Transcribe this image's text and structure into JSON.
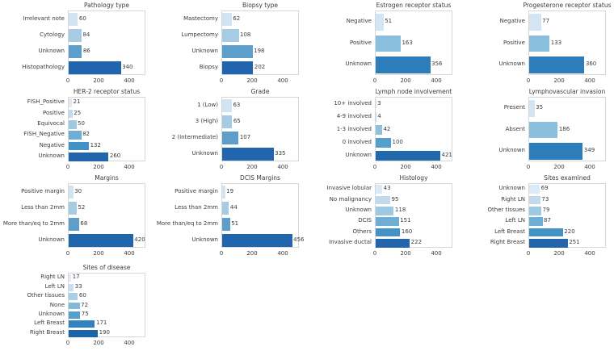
{
  "figure": {
    "background": "#ffffff",
    "axis_ticks": [
      0,
      200,
      400
    ],
    "xlim": [
      0,
      500
    ]
  },
  "chart_data": [
    {
      "type": "bar",
      "orientation": "horizontal",
      "title": "Pathology type",
      "categories": [
        "Irrelevant note",
        "Cytology",
        "Unknown",
        "Histopathology"
      ],
      "values": [
        60,
        84,
        86,
        340
      ],
      "colors": [
        "#d2e3f1",
        "#a6cbe2",
        "#5d9fca",
        "#2166ac"
      ],
      "xticks": [
        0,
        200,
        400
      ],
      "xlim": [
        0,
        500
      ]
    },
    {
      "type": "bar",
      "orientation": "horizontal",
      "title": "Biopsy type",
      "categories": [
        "Mastectomy",
        "Lumpectomy",
        "Unknown",
        "Biopsy"
      ],
      "values": [
        62,
        108,
        198,
        202
      ],
      "colors": [
        "#d2e3f1",
        "#a6cbe2",
        "#5d9fca",
        "#2166ac"
      ],
      "xticks": [
        0,
        200,
        400
      ],
      "xlim": [
        0,
        500
      ]
    },
    {
      "type": "bar",
      "orientation": "horizontal",
      "title": "Estrogen receptor status",
      "categories": [
        "Negative",
        "Positive",
        "Unknown"
      ],
      "values": [
        51,
        163,
        356
      ],
      "colors": [
        "#d3e4f3",
        "#8abfdd",
        "#2d7dbb"
      ],
      "xticks": [
        0,
        200,
        400
      ],
      "xlim": [
        0,
        500
      ]
    },
    {
      "type": "bar",
      "orientation": "horizontal",
      "title": "Progesterone receptor status",
      "categories": [
        "Negative",
        "Positive",
        "Unknown"
      ],
      "values": [
        77,
        133,
        360
      ],
      "colors": [
        "#d3e4f3",
        "#8abfdd",
        "#2d7dbb"
      ],
      "xticks": [
        0,
        200,
        400
      ],
      "xlim": [
        0,
        500
      ]
    },
    {
      "type": "bar",
      "orientation": "horizontal",
      "title": "HER-2 receptor status",
      "categories": [
        "FISH_Positive",
        "Positive",
        "Equivocal",
        "FISH_Negative",
        "Negative",
        "Unknown"
      ],
      "values": [
        21,
        25,
        50,
        82,
        132,
        260
      ],
      "colors": [
        "#dce9f6",
        "#c3daee",
        "#9fc9e1",
        "#6caed6",
        "#4292c6",
        "#2166ac"
      ],
      "xticks": [
        0,
        200,
        400
      ],
      "xlim": [
        0,
        500
      ]
    },
    {
      "type": "bar",
      "orientation": "horizontal",
      "title": "Grade",
      "categories": [
        "1 (Low)",
        "3 (High)",
        "2 (Intermediate)",
        "Unknown"
      ],
      "values": [
        63,
        65,
        107,
        335
      ],
      "colors": [
        "#d2e3f1",
        "#a6cbe2",
        "#5d9fca",
        "#2166ac"
      ],
      "xticks": [
        0,
        200,
        400
      ],
      "xlim": [
        0,
        500
      ]
    },
    {
      "type": "bar",
      "orientation": "horizontal",
      "title": "Lymph node involvement",
      "categories": [
        "10+ involved",
        "4-9 involved",
        "1-3 involved",
        "0 involved",
        "Unknown"
      ],
      "values": [
        3,
        4,
        42,
        100,
        421
      ],
      "colors": [
        "#dbe9f6",
        "#c1d9ed",
        "#8fc1dd",
        "#549fcd",
        "#2268ad"
      ],
      "xticks": [
        0,
        200,
        400
      ],
      "xlim": [
        0,
        500
      ]
    },
    {
      "type": "bar",
      "orientation": "horizontal",
      "title": "Lymphovascular invasion",
      "categories": [
        "Present",
        "Absent",
        "Unknown"
      ],
      "values": [
        35,
        186,
        349
      ],
      "colors": [
        "#d3e4f3",
        "#8abfdd",
        "#2d7dbb"
      ],
      "xticks": [
        0,
        200,
        400
      ],
      "xlim": [
        0,
        500
      ]
    },
    {
      "type": "bar",
      "orientation": "horizontal",
      "title": "Margins",
      "categories": [
        "Positive margin",
        "Less than 2mm",
        "More than/eq to 2mm",
        "Unknown"
      ],
      "values": [
        30,
        52,
        68,
        420
      ],
      "colors": [
        "#d2e3f1",
        "#a6cbe2",
        "#5d9fca",
        "#2166ac"
      ],
      "xticks": [
        0,
        200,
        400
      ],
      "xlim": [
        0,
        500
      ]
    },
    {
      "type": "bar",
      "orientation": "horizontal",
      "title": "DCIS Margins",
      "categories": [
        "Positive margin",
        "Less than 2mm",
        "More than/eq to 2mm",
        "Unknown"
      ],
      "values": [
        19,
        44,
        51,
        456
      ],
      "colors": [
        "#d2e3f1",
        "#a6cbe2",
        "#5d9fca",
        "#2166ac"
      ],
      "xticks": [
        0,
        200,
        400
      ],
      "xlim": [
        0,
        500
      ]
    },
    {
      "type": "bar",
      "orientation": "horizontal",
      "title": "Histology",
      "categories": [
        "Invasive lobular",
        "No malignancy",
        "Unknown",
        "DCIS",
        "Others",
        "Invasive ductal"
      ],
      "values": [
        43,
        95,
        118,
        151,
        160,
        222
      ],
      "colors": [
        "#dce9f6",
        "#c3daee",
        "#9fc9e1",
        "#6caed6",
        "#4292c6",
        "#2166ac"
      ],
      "xticks": [
        0,
        200,
        400
      ],
      "xlim": [
        0,
        500
      ]
    },
    {
      "type": "bar",
      "orientation": "horizontal",
      "title": "Sites examined",
      "categories": [
        "Unknown",
        "Right LN",
        "Other tissues",
        "Left LN",
        "Left Breast",
        "Right Breast"
      ],
      "values": [
        69,
        73,
        79,
        87,
        220,
        251
      ],
      "colors": [
        "#dce9f6",
        "#c3daee",
        "#9fc9e1",
        "#6caed6",
        "#4292c6",
        "#2166ac"
      ],
      "xticks": [
        0,
        200,
        400
      ],
      "xlim": [
        0,
        500
      ]
    },
    {
      "type": "bar",
      "orientation": "horizontal",
      "title": "Sites of disease",
      "categories": [
        "Right LN",
        "Left LN",
        "Other tissues",
        "None",
        "Unknown",
        "Left Breast",
        "Right Breast"
      ],
      "values": [
        17,
        33,
        60,
        72,
        75,
        171,
        190
      ],
      "colors": [
        "#dfecf7",
        "#c9def0",
        "#a9cfe5",
        "#7fbada",
        "#549fcd",
        "#3282bd",
        "#1c64aa"
      ],
      "xticks": [
        0,
        200,
        400
      ],
      "xlim": [
        0,
        500
      ]
    }
  ]
}
